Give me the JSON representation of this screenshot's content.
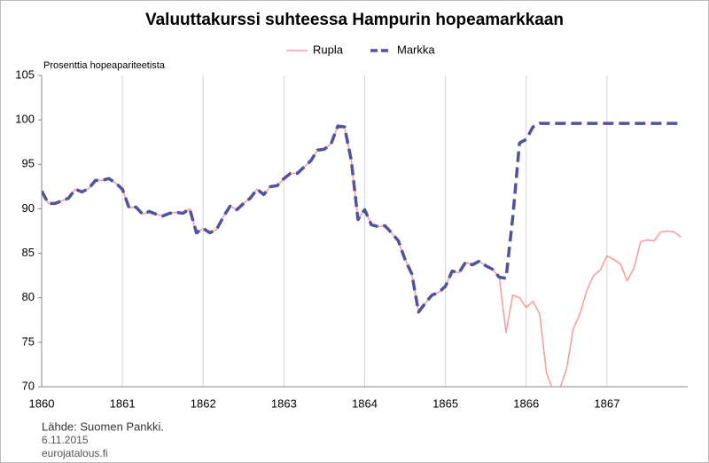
{
  "chart_data": {
    "type": "line",
    "title": "Valuuttakurssi suhteessa Hampurin hopeamarkkaan",
    "y_label": "Prosenttia hopeapariteetista",
    "source": "Lähde: Suomen Pankki.",
    "date": "6.11.2015",
    "site": "eurojatalous.fi",
    "x": [
      1860,
      1860.083,
      1860.167,
      1860.25,
      1860.333,
      1860.417,
      1860.5,
      1860.583,
      1860.667,
      1860.75,
      1860.833,
      1860.917,
      1861,
      1861.083,
      1861.167,
      1861.25,
      1861.333,
      1861.417,
      1861.5,
      1861.583,
      1861.667,
      1861.75,
      1861.833,
      1861.917,
      1862,
      1862.083,
      1862.167,
      1862.25,
      1862.333,
      1862.417,
      1862.5,
      1862.583,
      1862.667,
      1862.75,
      1862.833,
      1862.917,
      1863,
      1863.083,
      1863.167,
      1863.25,
      1863.333,
      1863.417,
      1863.5,
      1863.583,
      1863.667,
      1863.75,
      1863.833,
      1863.917,
      1864,
      1864.083,
      1864.167,
      1864.25,
      1864.333,
      1864.417,
      1864.5,
      1864.583,
      1864.667,
      1864.75,
      1864.833,
      1864.917,
      1865,
      1865.083,
      1865.167,
      1865.25,
      1865.333,
      1865.417,
      1865.5,
      1865.583,
      1865.667,
      1865.75,
      1865.833,
      1865.917,
      1866,
      1866.083,
      1866.167,
      1866.25,
      1866.333,
      1866.417,
      1866.5,
      1866.583,
      1866.667,
      1866.75,
      1866.833,
      1866.917,
      1867,
      1867.083,
      1867.167,
      1867.25,
      1867.333,
      1867.417,
      1867.5,
      1867.583,
      1867.667,
      1867.75,
      1867.833,
      1867.917
    ],
    "series": [
      {
        "name": "Rupla",
        "color": "#f4a0a0",
        "dashed": false,
        "values": [
          92.0,
          90.6,
          90.6,
          90.9,
          91.2,
          92.2,
          91.9,
          92.3,
          93.2,
          93.2,
          93.4,
          92.9,
          92.2,
          90.1,
          90.2,
          89.4,
          89.7,
          89.4,
          89.2,
          89.5,
          89.6,
          89.5,
          90.0,
          87.3,
          87.8,
          87.3,
          87.7,
          89.1,
          90.3,
          89.9,
          90.6,
          91.2,
          92.2,
          91.6,
          92.5,
          92.6,
          93.4,
          94.0,
          94.0,
          94.7,
          95.4,
          96.6,
          96.7,
          97.3,
          99.3,
          99.2,
          95.5,
          88.8,
          89.9,
          88.2,
          88.0,
          88.1,
          87.3,
          86.4,
          84.3,
          82.7,
          78.4,
          79.4,
          80.3,
          80.6,
          81.3,
          83.0,
          82.8,
          84.0,
          83.7,
          84.1,
          83.6,
          83.2,
          82.3,
          76.1,
          80.3,
          80.0,
          78.9,
          79.6,
          78.2,
          71.6,
          69.5,
          69.8,
          72.0,
          76.5,
          78.2,
          80.8,
          82.5,
          83.1,
          84.7,
          84.3,
          83.8,
          81.9,
          83.3,
          86.3,
          86.5,
          86.4,
          87.4,
          87.5,
          87.4,
          86.8
        ]
      },
      {
        "name": "Markka",
        "color": "#4f529f",
        "dashed": true,
        "values": [
          92.0,
          90.6,
          90.6,
          90.9,
          91.2,
          92.2,
          91.9,
          92.3,
          93.2,
          93.2,
          93.4,
          92.9,
          92.2,
          90.1,
          90.2,
          89.4,
          89.7,
          89.4,
          89.2,
          89.5,
          89.6,
          89.5,
          90.0,
          87.3,
          87.8,
          87.3,
          87.7,
          89.1,
          90.3,
          89.9,
          90.6,
          91.2,
          92.2,
          91.6,
          92.5,
          92.6,
          93.4,
          94.0,
          94.0,
          94.7,
          95.4,
          96.6,
          96.7,
          97.3,
          99.3,
          99.2,
          95.5,
          88.8,
          89.9,
          88.2,
          88.0,
          88.1,
          87.3,
          86.4,
          84.3,
          82.7,
          78.4,
          79.4,
          80.3,
          80.6,
          81.3,
          83.0,
          82.8,
          84.0,
          83.7,
          84.1,
          83.6,
          83.2,
          82.3,
          82.2,
          89.0,
          97.4,
          97.8,
          99.2,
          99.6,
          99.6,
          99.6,
          99.6,
          99.6,
          99.6,
          99.6,
          99.6,
          99.6,
          99.6,
          99.6,
          99.6,
          99.6,
          99.6,
          99.6,
          99.6,
          99.6,
          99.6,
          99.6,
          99.6,
          99.6,
          99.6
        ]
      }
    ],
    "xlim": [
      1860,
      1868
    ],
    "xticks": [
      1860,
      1861,
      1862,
      1863,
      1864,
      1865,
      1866,
      1867
    ],
    "ylim": [
      70,
      105
    ],
    "yticks": [
      70,
      75,
      80,
      85,
      90,
      95,
      100,
      105
    ],
    "grid": "x",
    "legend": "top"
  }
}
